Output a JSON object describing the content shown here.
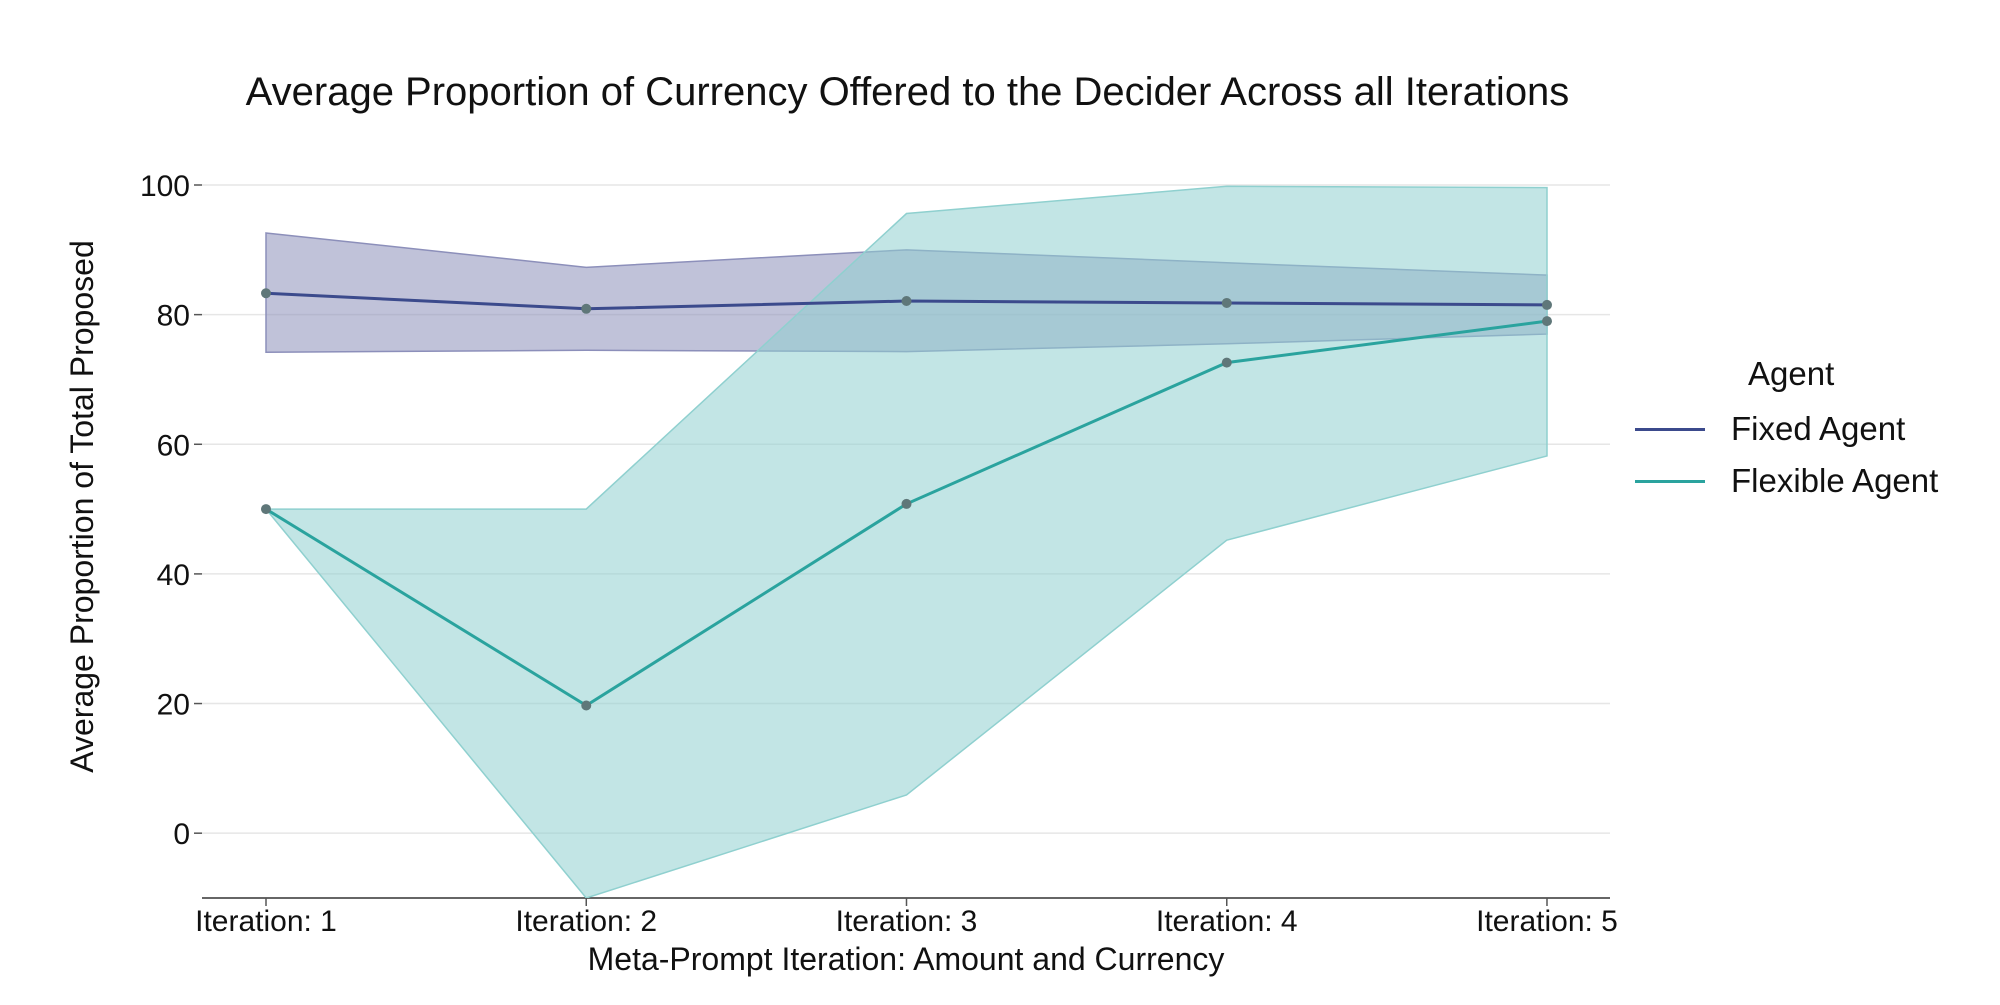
{
  "chart_data": {
    "type": "line",
    "title": "Average Proportion of Currency Offered to the Decider Across all Iterations",
    "xlabel": "Meta-Prompt Iteration: Amount and Currency",
    "ylabel": "Average Proportion of Total Proposed",
    "categories": [
      "Iteration: 1",
      "Iteration: 2",
      "Iteration: 3",
      "Iteration: 4",
      "Iteration: 5"
    ],
    "ylim": [
      -10,
      100
    ],
    "yticks": [
      0,
      20,
      40,
      60,
      80,
      100
    ],
    "grid": "horizontal",
    "legend_title": "Agent",
    "legend_position": "right",
    "series": [
      {
        "name": "Fixed Agent",
        "color": "#3b4a8c",
        "band_color": "#8c8fba",
        "values": [
          83.3,
          80.9,
          82.1,
          81.8,
          81.5
        ],
        "lower": [
          74.2,
          74.5,
          74.3,
          75.5,
          77.0
        ],
        "upper": [
          92.6,
          87.3,
          90.0,
          88.0,
          86.1
        ]
      },
      {
        "name": "Flexible Agent",
        "color": "#2aa39e",
        "band_color": "#8fd0cf",
        "values": [
          50.0,
          19.7,
          50.8,
          72.6,
          79.0
        ],
        "lower": [
          50.0,
          -10.0,
          5.9,
          45.2,
          58.2
        ],
        "upper": [
          50.0,
          50.0,
          95.6,
          99.8,
          99.6
        ]
      }
    ],
    "marker_color": "#5f7779"
  }
}
